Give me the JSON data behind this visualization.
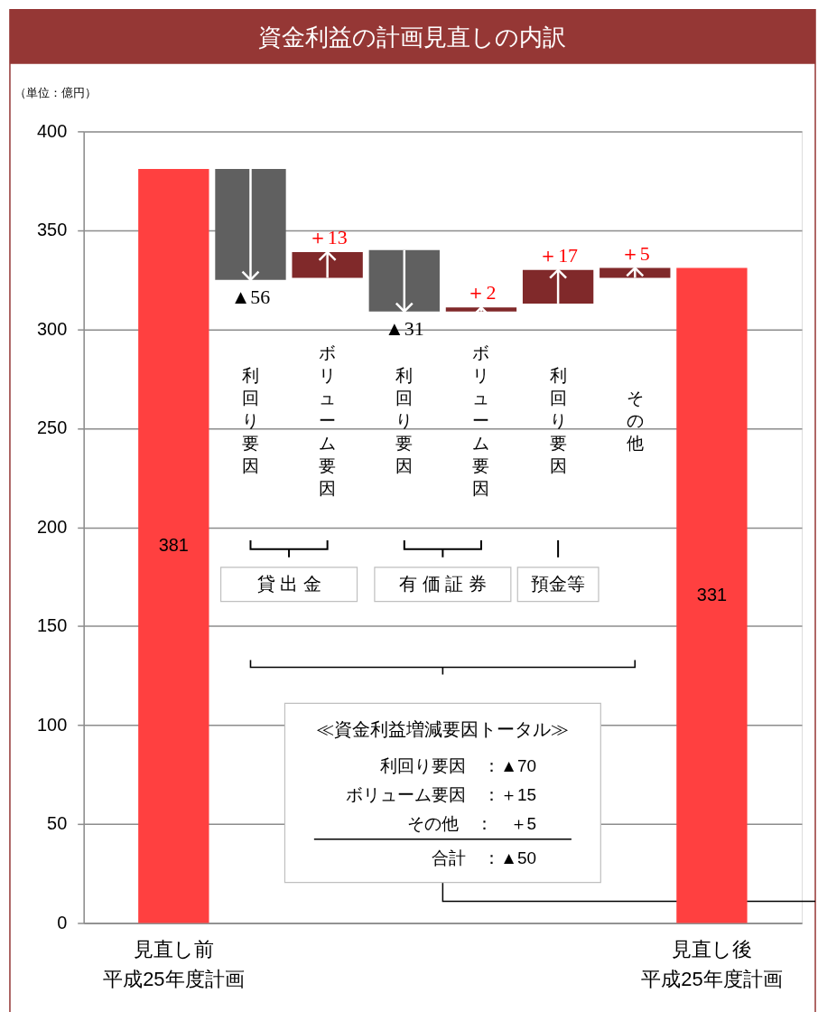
{
  "chart_data": {
    "type": "bar",
    "title": "資金利益の計画見直しの内訳",
    "ylabel": "（単位：億円）",
    "categories": [
      "見直し前平成25年度計画",
      "利回り要因",
      "ボリューム要因",
      "利回り要因",
      "ボリューム要因",
      "利回り要因",
      "その他",
      "見直し後平成25年度計画"
    ],
    "values": [
      381,
      -56,
      13,
      -31,
      2,
      17,
      5,
      331
    ],
    "base": [
      null,
      381,
      326,
      340,
      309,
      313,
      326,
      null
    ],
    "colors": [
      "#ff4040",
      "#606060",
      "#80292a",
      "#606060",
      "#80292a",
      "#80292a",
      "#80292a",
      "#ff4040"
    ],
    "value_labels": [
      "381",
      "▲56",
      "＋13",
      "▲31",
      "＋2",
      "＋17",
      "＋5",
      "331"
    ],
    "ylim": [
      0,
      400
    ],
    "yticks": [
      0,
      50,
      100,
      150,
      200,
      250,
      300,
      350,
      400
    ],
    "grid": "y",
    "annotations": [
      "貸 出 金",
      "有 価 証 券",
      "預金等",
      "≪資金利益増減要因トータル≫",
      "利回り要因　：▲70",
      "ボリューム要因　：＋15",
      "その他　：　＋5",
      "合計　：▲50"
    ]
  }
}
